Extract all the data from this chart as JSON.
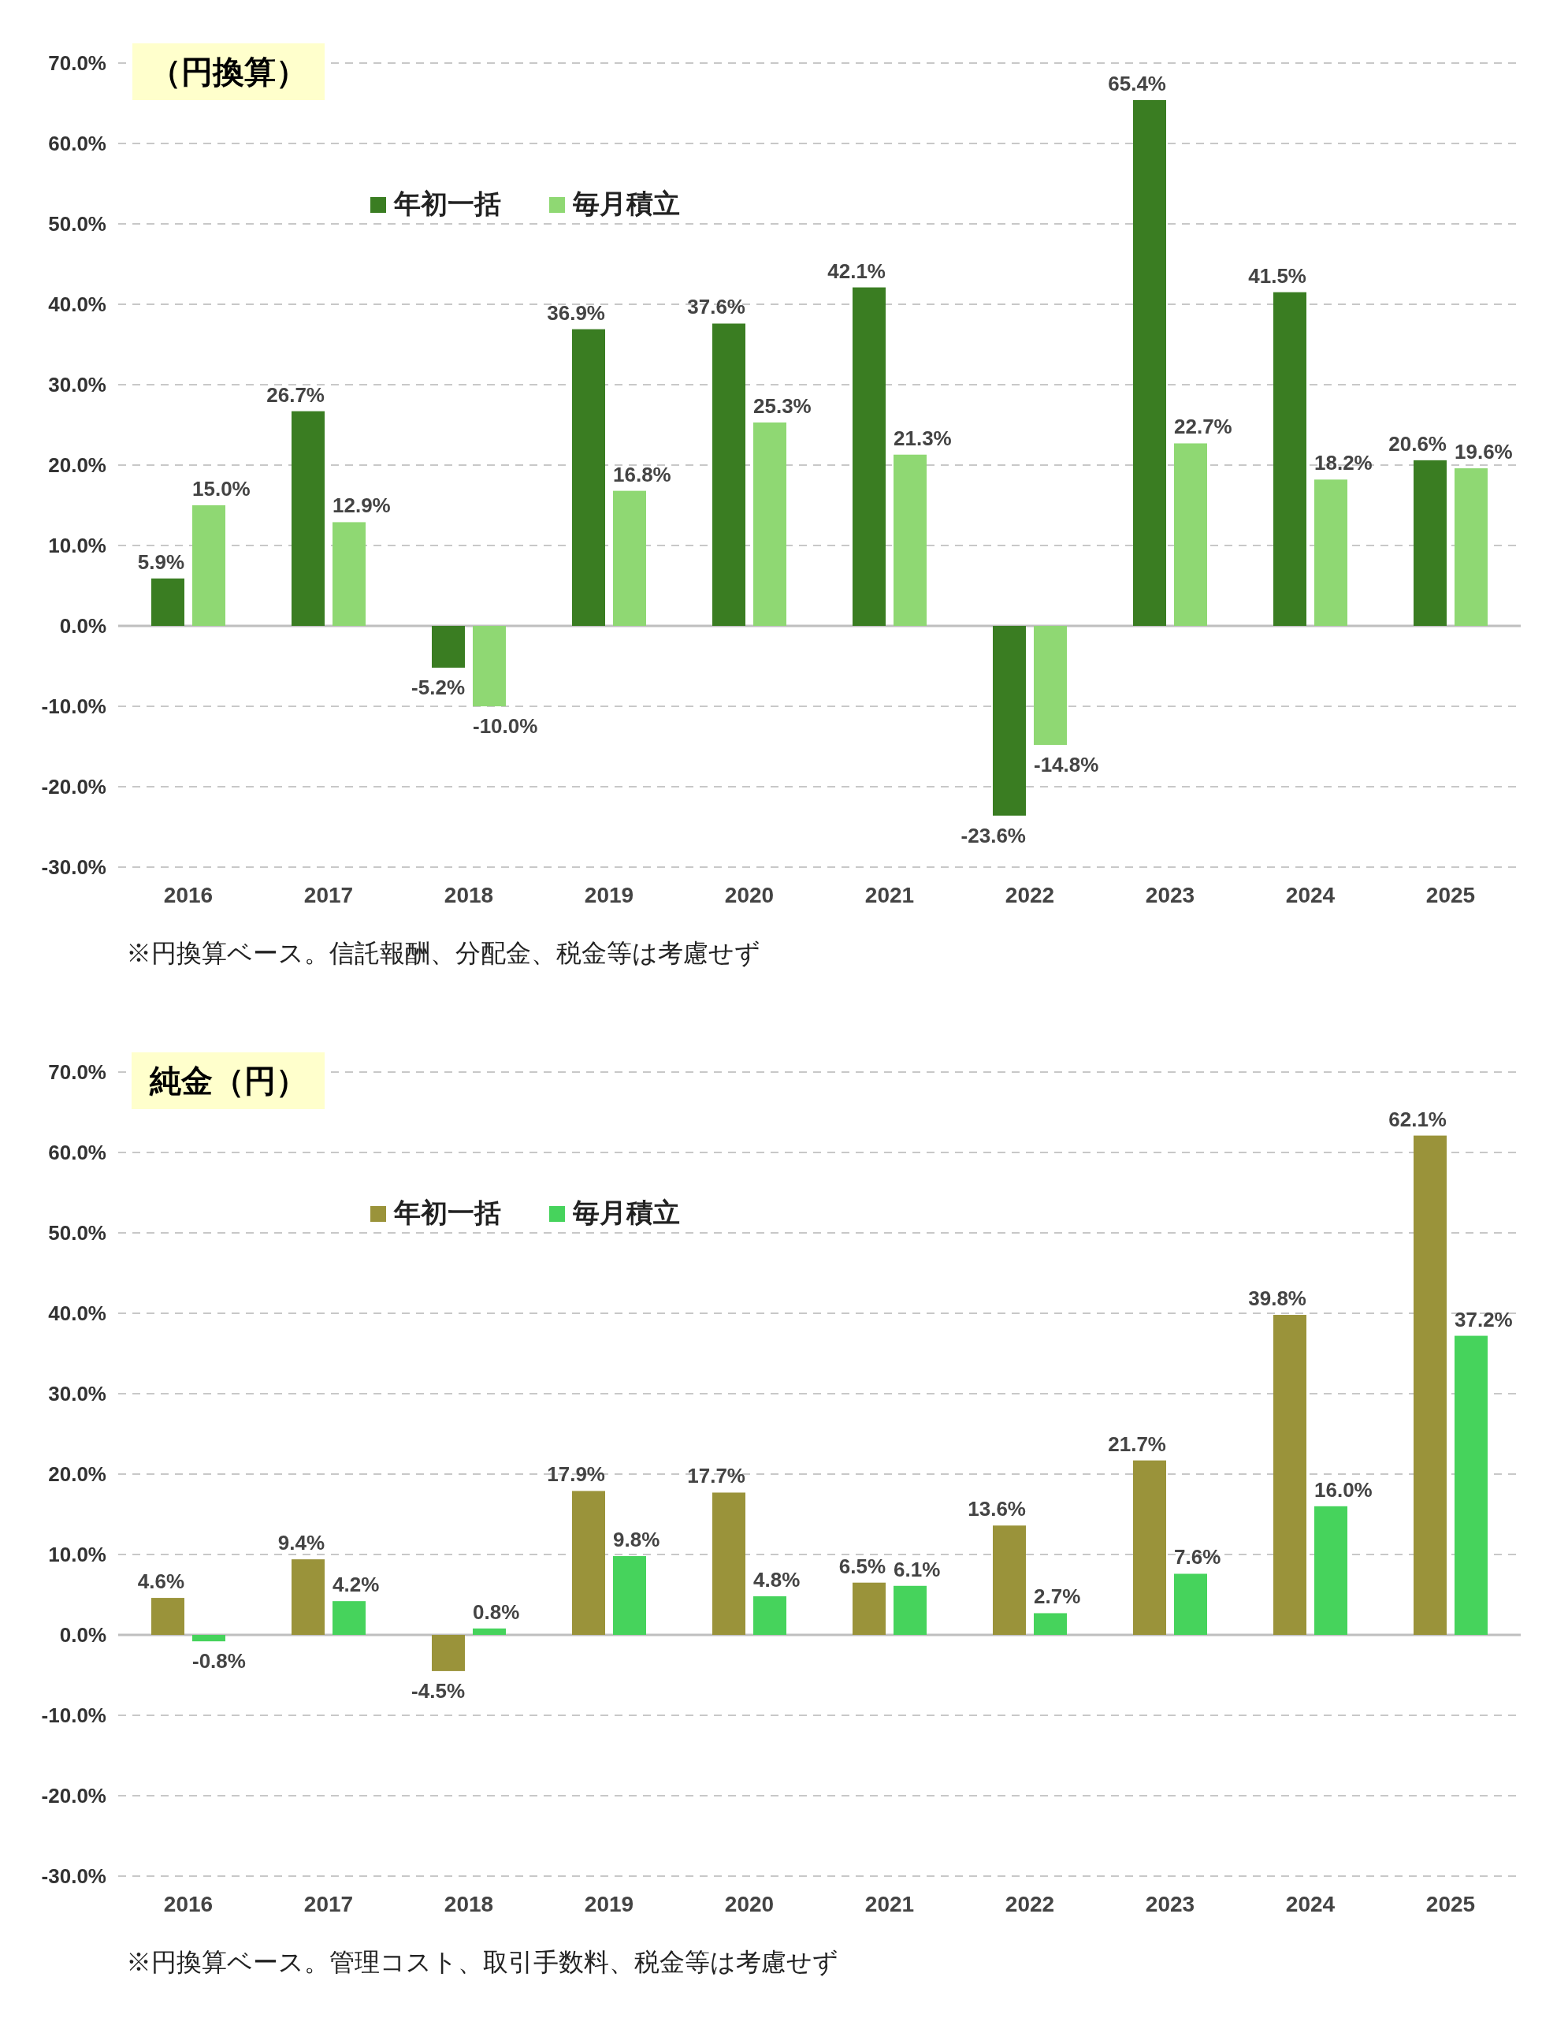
{
  "chart_data": [
    {
      "type": "bar",
      "title": "（円換算）",
      "categories": [
        "2016",
        "2017",
        "2018",
        "2019",
        "2020",
        "2021",
        "2022",
        "2023",
        "2024",
        "2025"
      ],
      "series": [
        {
          "name": "年初一括",
          "color": "#3a7d22",
          "values": [
            5.9,
            26.7,
            -5.2,
            36.9,
            37.6,
            42.1,
            -23.6,
            65.4,
            41.5,
            20.6
          ],
          "value_labels": [
            "5.9%",
            "26.7%",
            "-5.2%",
            "36.9%",
            "37.6%",
            "42.1%",
            "-23.6%",
            "65.4%",
            "41.5%",
            "20.6%"
          ]
        },
        {
          "name": "毎月積立",
          "color": "#8fd873",
          "values": [
            15.0,
            12.9,
            -10.0,
            16.8,
            25.3,
            21.3,
            -14.8,
            22.7,
            18.2,
            19.6
          ],
          "value_labels": [
            "15.0%",
            "12.9%",
            "-10.0%",
            "16.8%",
            "25.3%",
            "21.3%",
            "-14.8%",
            "22.7%",
            "18.2%",
            "19.6%"
          ]
        }
      ],
      "ylim": [
        -30,
        70
      ],
      "yticks": [
        {
          "value": -30,
          "label": "-30.0%"
        },
        {
          "value": -20,
          "label": "-20.0%"
        },
        {
          "value": -10,
          "label": "-10.0%"
        },
        {
          "value": 0,
          "label": "0.0%"
        },
        {
          "value": 10,
          "label": "10.0%"
        },
        {
          "value": 20,
          "label": "20.0%"
        },
        {
          "value": 30,
          "label": "30.0%"
        },
        {
          "value": 40,
          "label": "40.0%"
        },
        {
          "value": 50,
          "label": "50.0%"
        },
        {
          "value": 60,
          "label": "60.0%"
        },
        {
          "value": 70,
          "label": "70.0%"
        }
      ],
      "grid": "y",
      "legend": "top left",
      "annotations": [
        "※円換算ベース。信託報酬、分配金、税金等は考慮せず"
      ]
    },
    {
      "type": "bar",
      "title": "純金（円）",
      "categories": [
        "2016",
        "2017",
        "2018",
        "2019",
        "2020",
        "2021",
        "2022",
        "2023",
        "2024",
        "2025"
      ],
      "series": [
        {
          "name": "年初一括",
          "color": "#9a933a",
          "values": [
            4.6,
            9.4,
            -4.5,
            17.9,
            17.7,
            6.5,
            13.6,
            21.7,
            39.8,
            62.1
          ],
          "value_labels": [
            "4.6%",
            "9.4%",
            "-4.5%",
            "17.9%",
            "17.7%",
            "6.5%",
            "13.6%",
            "21.7%",
            "39.8%",
            "62.1%"
          ]
        },
        {
          "name": "毎月積立",
          "color": "#46d35c",
          "values": [
            -0.8,
            4.2,
            0.8,
            9.8,
            4.8,
            6.1,
            2.7,
            7.6,
            16.0,
            37.2
          ],
          "value_labels": [
            "-0.8%",
            "4.2%",
            "0.8%",
            "9.8%",
            "4.8%",
            "6.1%",
            "2.7%",
            "7.6%",
            "16.0%",
            "37.2%"
          ]
        }
      ],
      "ylim": [
        -30,
        70
      ],
      "yticks": [
        {
          "value": -30,
          "label": "-30.0%"
        },
        {
          "value": -20,
          "label": "-20.0%"
        },
        {
          "value": -10,
          "label": "-10.0%"
        },
        {
          "value": 0,
          "label": "0.0%"
        },
        {
          "value": 10,
          "label": "10.0%"
        },
        {
          "value": 20,
          "label": "20.0%"
        },
        {
          "value": 30,
          "label": "30.0%"
        },
        {
          "value": 40,
          "label": "40.0%"
        },
        {
          "value": 50,
          "label": "50.0%"
        },
        {
          "value": 60,
          "label": "60.0%"
        },
        {
          "value": 70,
          "label": "70.0%"
        }
      ],
      "grid": "y",
      "legend": "top left",
      "annotations": [
        "※円換算ベース。管理コスト、取引手数料、税金等は考慮せず"
      ]
    }
  ]
}
